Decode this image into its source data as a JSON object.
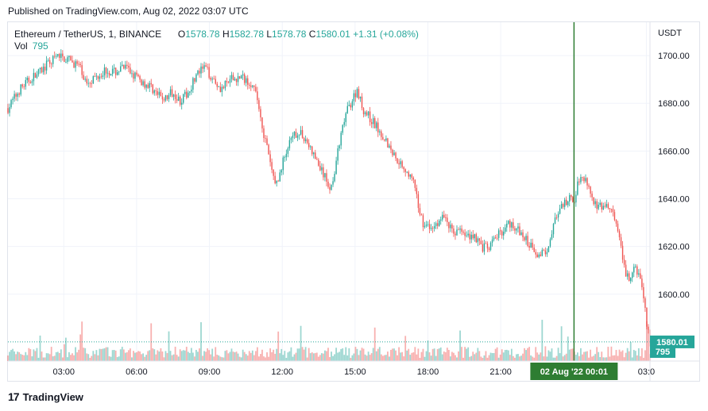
{
  "header": {
    "published": "Published on TradingView.com, Aug 02, 2022 03:07 UTC"
  },
  "legend": {
    "symbol": "Ethereum / TetherUS, 1, BINANCE",
    "open_label": "O",
    "open": "1578.78",
    "high_label": "H",
    "high": "1582.78",
    "low_label": "L",
    "low": "1578.78",
    "close_label": "C",
    "close": "1580.01",
    "change": "+1.31 (+0.08%)",
    "vol_label": "Vol",
    "vol": "795"
  },
  "footer": {
    "brand": "TradingView",
    "logo": "17"
  },
  "colors": {
    "up": "#26a69a",
    "down": "#ef5350",
    "crosshair": "#2e7d32",
    "label_bg": "#26a69a"
  },
  "chart_data": {
    "type": "candlestick",
    "y_axis_unit": "USDT",
    "ylim": [
      1572,
      1714
    ],
    "y_ticks": [
      "1700.00",
      "1680.00",
      "1660.00",
      "1640.00",
      "1620.00",
      "1600.00"
    ],
    "y_tick_values": [
      1700,
      1680,
      1660,
      1640,
      1620,
      1600
    ],
    "x_ticks": [
      "03:00",
      "06:00",
      "09:00",
      "12:00",
      "15:00",
      "18:00",
      "21:00",
      "03:0"
    ],
    "x_tick_hours": [
      3,
      6,
      9,
      12,
      15,
      18,
      21,
      27
    ],
    "x_range_hours": [
      0.7,
      27.15
    ],
    "last_price": "1580.01",
    "last_price_value": 1580.01,
    "last_volume": "795",
    "crosshair_label": "02 Aug '22   00:01",
    "crosshair_hour": 24.02,
    "close_path": [
      [
        0.7,
        1678
      ],
      [
        1.2,
        1686
      ],
      [
        1.6,
        1690
      ],
      [
        2.0,
        1693
      ],
      [
        2.4,
        1697
      ],
      [
        2.8,
        1700
      ],
      [
        3.2,
        1698
      ],
      [
        3.6,
        1696
      ],
      [
        3.9,
        1689
      ],
      [
        4.3,
        1691
      ],
      [
        4.7,
        1694
      ],
      [
        5.1,
        1693
      ],
      [
        5.5,
        1695
      ],
      [
        5.9,
        1692
      ],
      [
        6.2,
        1689
      ],
      [
        6.6,
        1687
      ],
      [
        6.9,
        1683
      ],
      [
        7.2,
        1682
      ],
      [
        7.5,
        1685
      ],
      [
        7.8,
        1681
      ],
      [
        8.1,
        1684
      ],
      [
        8.4,
        1691
      ],
      [
        8.8,
        1695
      ],
      [
        9.1,
        1691
      ],
      [
        9.5,
        1686
      ],
      [
        9.9,
        1690
      ],
      [
        10.3,
        1691
      ],
      [
        10.7,
        1689
      ],
      [
        11.0,
        1681
      ],
      [
        11.2,
        1669
      ],
      [
        11.4,
        1660
      ],
      [
        11.6,
        1650
      ],
      [
        11.8,
        1646
      ],
      [
        12.0,
        1655
      ],
      [
        12.3,
        1663
      ],
      [
        12.6,
        1668
      ],
      [
        12.9,
        1666
      ],
      [
        13.2,
        1660
      ],
      [
        13.5,
        1654
      ],
      [
        13.8,
        1648
      ],
      [
        14.0,
        1644
      ],
      [
        14.3,
        1660
      ],
      [
        14.6,
        1675
      ],
      [
        14.9,
        1682
      ],
      [
        15.1,
        1686
      ],
      [
        15.3,
        1678
      ],
      [
        15.6,
        1674
      ],
      [
        15.9,
        1670
      ],
      [
        16.2,
        1666
      ],
      [
        16.5,
        1660
      ],
      [
        16.8,
        1656
      ],
      [
        17.1,
        1652
      ],
      [
        17.4,
        1647
      ],
      [
        17.6,
        1637
      ],
      [
        17.8,
        1630
      ],
      [
        18.1,
        1627
      ],
      [
        18.4,
        1630
      ],
      [
        18.7,
        1633
      ],
      [
        19.0,
        1626
      ],
      [
        19.3,
        1627
      ],
      [
        19.6,
        1624
      ],
      [
        19.9,
        1625
      ],
      [
        20.2,
        1620
      ],
      [
        20.5,
        1619
      ],
      [
        20.8,
        1624
      ],
      [
        21.1,
        1627
      ],
      [
        21.4,
        1630
      ],
      [
        21.7,
        1627
      ],
      [
        22.0,
        1623
      ],
      [
        22.3,
        1620
      ],
      [
        22.6,
        1616
      ],
      [
        22.9,
        1619
      ],
      [
        23.2,
        1630
      ],
      [
        23.5,
        1636
      ],
      [
        23.8,
        1640
      ],
      [
        24.0,
        1638
      ],
      [
        24.2,
        1648
      ],
      [
        24.4,
        1650
      ],
      [
        24.6,
        1646
      ],
      [
        24.8,
        1640
      ],
      [
        25.0,
        1636
      ],
      [
        25.3,
        1637
      ],
      [
        25.6,
        1635
      ],
      [
        25.9,
        1622
      ],
      [
        26.1,
        1610
      ],
      [
        26.3,
        1606
      ],
      [
        26.5,
        1610
      ],
      [
        26.7,
        1609
      ],
      [
        26.9,
        1598
      ],
      [
        27.0,
        1588
      ],
      [
        27.15,
        1580
      ]
    ]
  }
}
